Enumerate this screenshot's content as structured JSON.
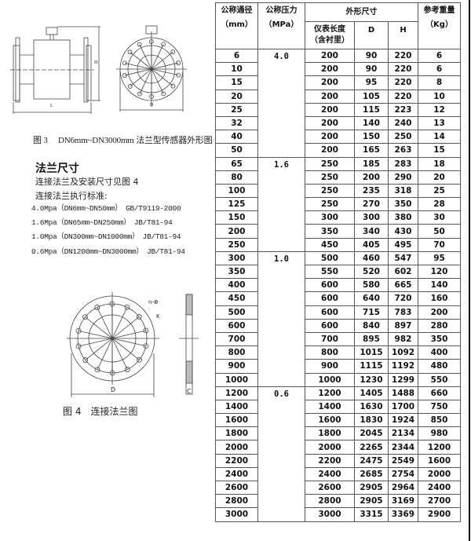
{
  "figure3": {
    "caption": "图 3　 DN6mm~DN3000mm 法兰型传感器外形图",
    "label_L": "L",
    "label_H": "H",
    "label_D": "D"
  },
  "flange": {
    "heading": "法兰尺寸",
    "line1": "连接法兰及安装尺寸见图 4",
    "line2": "连接法兰执行标准:",
    "standards": [
      "4.0Mpa（DN6mm~DN50mm）　GB/T9119-2000",
      "1.6Mpa（DN65mm~DN250mm）　JB/T81-94",
      "1.0Mpa（DN300mm~DN1000mm）　JB/T81-94",
      "0.6Mpa（DN1200mm~DN3000mm）　JB/T81-94"
    ]
  },
  "figure4": {
    "caption": "图 4　连接法兰图",
    "label_D": "D",
    "label_C": "C",
    "label_n": "n-Φ",
    "label_K": "K"
  },
  "table": {
    "headers": {
      "dn": "公称通径",
      "dn_unit": "（mm）",
      "pressure": "公称压力",
      "pressure_unit": "（MPa）",
      "dims": "外形尺寸",
      "length": "仪表长度",
      "length_note": "（含衬里）",
      "d": "D",
      "h": "H",
      "weight": "参考重量",
      "weight_unit": "（Kg）"
    },
    "groups": [
      {
        "pressure": "4.0",
        "rows": [
          [
            "6",
            "200",
            "90",
            "220",
            "6"
          ],
          [
            "10",
            "200",
            "90",
            "220",
            "6"
          ],
          [
            "15",
            "200",
            "95",
            "220",
            "8"
          ],
          [
            "20",
            "200",
            "105",
            "220",
            "10"
          ],
          [
            "25",
            "200",
            "115",
            "223",
            "12"
          ],
          [
            "32",
            "200",
            "140",
            "240",
            "13"
          ],
          [
            "40",
            "200",
            "150",
            "250",
            "14"
          ],
          [
            "50",
            "200",
            "165",
            "263",
            "15"
          ]
        ]
      },
      {
        "pressure": "1.6",
        "rows": [
          [
            "65",
            "250",
            "185",
            "283",
            "18"
          ],
          [
            "80",
            "250",
            "200",
            "290",
            "20"
          ],
          [
            "100",
            "250",
            "235",
            "318",
            "25"
          ],
          [
            "125",
            "250",
            "270",
            "350",
            "28"
          ],
          [
            "150",
            "300",
            "300",
            "380",
            "30"
          ],
          [
            "200",
            "350",
            "340",
            "430",
            "50"
          ],
          [
            "250",
            "450",
            "405",
            "495",
            "70"
          ]
        ]
      },
      {
        "pressure": "1.0",
        "rows": [
          [
            "300",
            "500",
            "460",
            "547",
            "95"
          ],
          [
            "350",
            "550",
            "520",
            "602",
            "120"
          ],
          [
            "400",
            "600",
            "580",
            "665",
            "140"
          ],
          [
            "450",
            "600",
            "640",
            "720",
            "160"
          ],
          [
            "500",
            "600",
            "715",
            "783",
            "200"
          ],
          [
            "600",
            "600",
            "840",
            "897",
            "280"
          ],
          [
            "700",
            "700",
            "895",
            "982",
            "350"
          ],
          [
            "800",
            "800",
            "1015",
            "1092",
            "400"
          ],
          [
            "900",
            "900",
            "1115",
            "1192",
            "480"
          ],
          [
            "1000",
            "1000",
            "1230",
            "1299",
            "550"
          ]
        ]
      },
      {
        "pressure": "0.6",
        "rows": [
          [
            "1200",
            "1200",
            "1405",
            "1488",
            "660"
          ],
          [
            "1400",
            "1400",
            "1630",
            "1700",
            "750"
          ],
          [
            "1600",
            "1600",
            "1830",
            "1924",
            "850"
          ],
          [
            "1800",
            "1800",
            "2045",
            "2134",
            "980"
          ],
          [
            "2000",
            "2000",
            "2265",
            "2344",
            "1200"
          ],
          [
            "2200",
            "2200",
            "2475",
            "2549",
            "1600"
          ],
          [
            "2400",
            "2400",
            "2685",
            "2754",
            "2000"
          ],
          [
            "2600",
            "2600",
            "2905",
            "2964",
            "2400"
          ],
          [
            "2800",
            "2800",
            "2905",
            "3169",
            "2700"
          ],
          [
            "3000",
            "3000",
            "3315",
            "3369",
            "2900"
          ]
        ]
      }
    ]
  }
}
